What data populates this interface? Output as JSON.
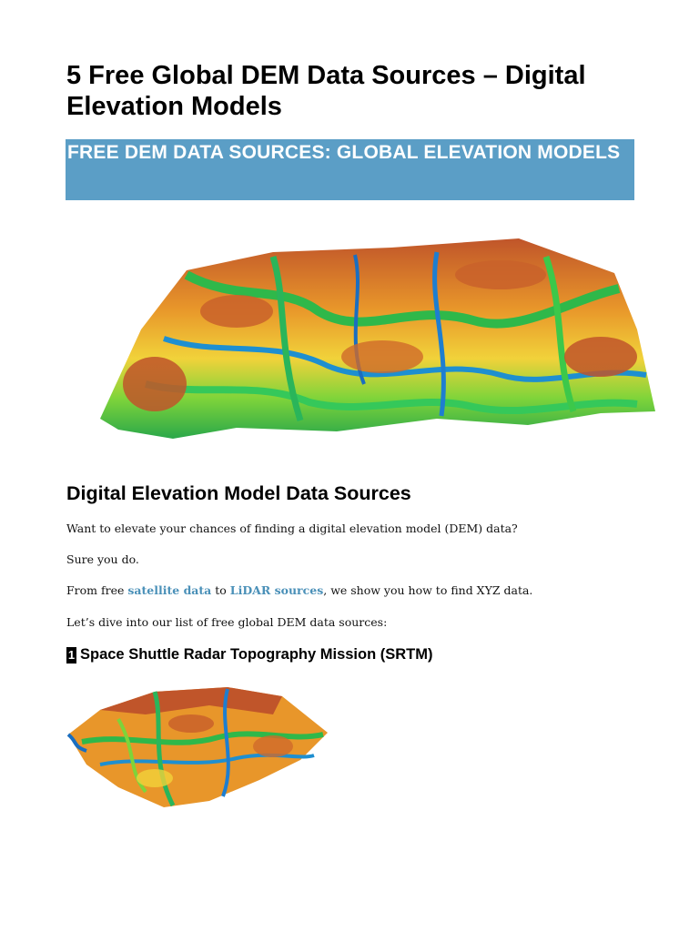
{
  "article": {
    "title": "5 Free Global DEM Data Sources – Digital Elevation Models",
    "banner": "FREE DEM DATA SOURCES: GLOBAL ELEVATION MODELS",
    "section_heading": "Digital Elevation Model Data Sources",
    "p1": "Want to elevate your chances of finding a digital elevation model (DEM) data?",
    "p2": "Sure you do.",
    "p3_before": "From free ",
    "link1": "satellite data",
    "p3_mid": " to ",
    "link2": "LiDAR sources",
    "p3_after": ", we show you how to find XYZ data.",
    "p4": "Let’s dive into our list of free global DEM data sources:",
    "item1_number": "1",
    "item1_heading": "Space Shuttle Radar Topography Mission (SRTM)"
  },
  "colors": {
    "banner": "#5b9ec6",
    "link": "#4a90b8"
  },
  "images": {
    "hero": "elevation-terrain-3d-render",
    "thumbnail": "srtm-terrain-3d-render"
  }
}
